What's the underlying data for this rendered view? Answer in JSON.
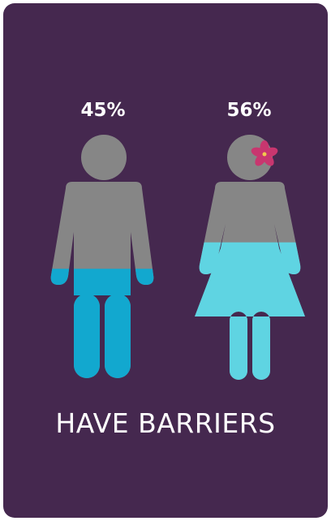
{
  "chart_data": {
    "type": "pictograph",
    "title": "HAVE BARRIERS",
    "categories": [
      "men",
      "women"
    ],
    "values": [
      45,
      56
    ],
    "value_labels": [
      "45%",
      "56%"
    ],
    "unit": "%",
    "ylim": [
      0,
      100
    ],
    "colors": {
      "background": "#45284f",
      "figure_base": "#868686",
      "men_fill": "#12a8cf",
      "women_fill": "#5fd4e2",
      "flower": "#c8366f"
    }
  }
}
